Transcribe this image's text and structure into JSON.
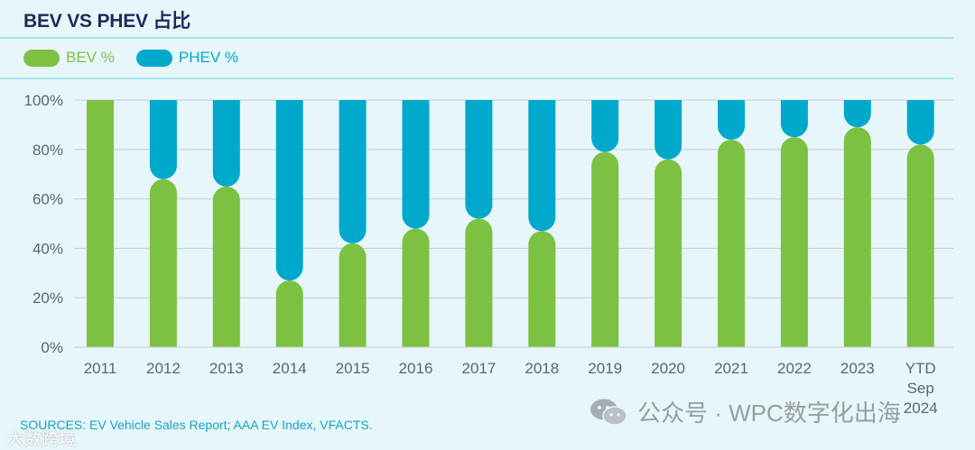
{
  "title": "BEV VS PHEV 占比",
  "source": "SOURCES: EV Vehicle Sales Report; AAA EV Index, VFACTS.",
  "watermarks": {
    "wechat": "公众号 · WPC数字化出海",
    "left": "大数跨境"
  },
  "colors": {
    "bev": "#7dc142",
    "phev": "#00a9cc",
    "grid": "#c9cdd1",
    "tick": "#5b6670",
    "title": "#1c2a5a"
  },
  "chart_data": {
    "type": "bar",
    "stacked": true,
    "title": "BEV VS PHEV 占比",
    "categories": [
      "2011",
      "2012",
      "2013",
      "2014",
      "2015",
      "2016",
      "2017",
      "2018",
      "2019",
      "2020",
      "2021",
      "2022",
      "2023",
      "YTD Sep 2024"
    ],
    "category_lines": [
      [
        "2011"
      ],
      [
        "2012"
      ],
      [
        "2013"
      ],
      [
        "2014"
      ],
      [
        "2015"
      ],
      [
        "2016"
      ],
      [
        "2017"
      ],
      [
        "2018"
      ],
      [
        "2019"
      ],
      [
        "2020"
      ],
      [
        "2021"
      ],
      [
        "2022"
      ],
      [
        "2023"
      ],
      [
        "YTD",
        "Sep",
        "2024"
      ]
    ],
    "series": [
      {
        "name": "BEV %",
        "values": [
          100,
          68,
          65,
          27,
          42,
          48,
          52,
          47,
          79,
          76,
          84,
          85,
          89,
          82
        ]
      },
      {
        "name": "PHEV %",
        "values": [
          0,
          32,
          35,
          73,
          58,
          52,
          48,
          53,
          21,
          24,
          16,
          15,
          11,
          18
        ]
      }
    ],
    "yticks": [
      "0%",
      "20%",
      "40%",
      "60%",
      "80%",
      "100%"
    ],
    "ytick_values": [
      0,
      20,
      40,
      60,
      80,
      100
    ],
    "ylim": [
      0,
      100
    ],
    "xlabel": "",
    "ylabel": "",
    "grid": true,
    "legend": "top-left"
  }
}
